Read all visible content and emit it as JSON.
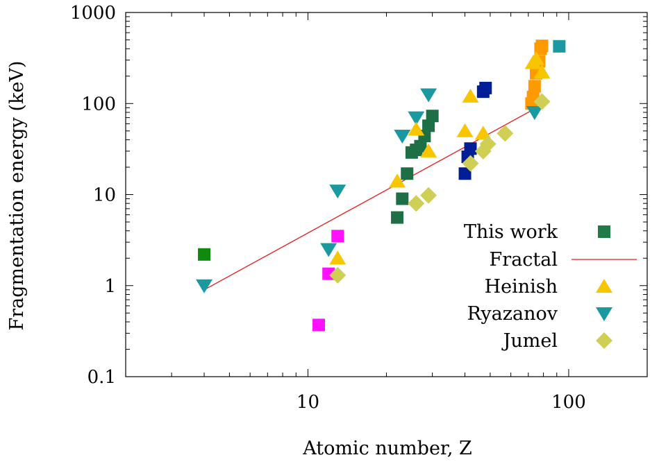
{
  "chart_data": {
    "type": "scatter",
    "xscale": "log",
    "yscale": "log",
    "xlim": [
      2,
      200
    ],
    "ylim": [
      0.1,
      1000
    ],
    "xlabel": "Atomic number, Z",
    "ylabel": "Fragmentation energy (keV)",
    "x_ticks": [
      10,
      100
    ],
    "x_tick_labels": [
      "10",
      "100"
    ],
    "y_ticks": [
      0.1,
      1,
      10,
      100,
      1000
    ],
    "y_tick_labels": [
      "0.1",
      "1",
      "10",
      "100",
      "1000"
    ],
    "legend_position": "right",
    "legend": [
      {
        "label": "This work",
        "marker": "square",
        "color": "#1f7a47"
      },
      {
        "label": "Fractal",
        "marker": "line",
        "color": "#e41a1c"
      },
      {
        "label": "Heinish",
        "marker": "triangle-up",
        "color": "#f7c600"
      },
      {
        "label": "Ryazanov",
        "marker": "triangle-down",
        "color": "#1a9aa0"
      },
      {
        "label": "Jumel",
        "marker": "diamond",
        "color": "#d0cf55"
      }
    ],
    "series": [
      {
        "name": "This work",
        "marker": "square",
        "groups": [
          {
            "color": "#0f8a0f",
            "points": [
              [
                4,
                2.2
              ]
            ]
          },
          {
            "color": "#ff10ff",
            "points": [
              [
                11,
                0.37
              ],
              [
                12,
                1.35
              ],
              [
                13,
                3.5
              ]
            ]
          },
          {
            "color": "#1e6f46",
            "points": [
              [
                22,
                5.6
              ],
              [
                23,
                9
              ],
              [
                24,
                17
              ],
              [
                25,
                29
              ],
              [
                26,
                31
              ],
              [
                27,
                34
              ],
              [
                28,
                44
              ],
              [
                29,
                57
              ],
              [
                30,
                73
              ]
            ]
          },
          {
            "color": "#001e96",
            "points": [
              [
                40,
                17
              ],
              [
                41,
                26
              ],
              [
                42,
                32
              ],
              [
                47,
                135
              ],
              [
                48,
                148
              ]
            ]
          },
          {
            "color": "#ff9900",
            "points": [
              [
                72,
                100
              ],
              [
                73,
                118
              ],
              [
                74,
                155
              ],
              [
                75,
                215
              ],
              [
                76,
                252
              ],
              [
                77,
                290
              ],
              [
                78,
                400
              ],
              [
                79,
                430
              ]
            ]
          },
          {
            "color": "#1a9aa0",
            "points": [
              [
                92,
                425
              ]
            ]
          }
        ]
      },
      {
        "name": "Fractal",
        "type": "line",
        "color": "#e41a1c",
        "points": [
          [
            4,
            0.9
          ],
          [
            78,
            95
          ]
        ]
      },
      {
        "name": "Heinish",
        "marker": "triangle-up",
        "color": "#f7c600",
        "points": [
          [
            13,
            2.0
          ],
          [
            22,
            14
          ],
          [
            26,
            52
          ],
          [
            29,
            30
          ],
          [
            40,
            50
          ],
          [
            42,
            120
          ],
          [
            47,
            47
          ],
          [
            73,
            280
          ],
          [
            75,
            310
          ],
          [
            79,
            220
          ]
        ]
      },
      {
        "name": "Ryazanov",
        "marker": "triangle-down",
        "color": "#1a9aa0",
        "points": [
          [
            4,
            1.0
          ],
          [
            12,
            2.5
          ],
          [
            13,
            11
          ],
          [
            23,
            44
          ],
          [
            26,
            70
          ],
          [
            29,
            125
          ],
          [
            74,
            80
          ]
        ]
      },
      {
        "name": "Jumel",
        "marker": "diamond",
        "color": "#d0cf55",
        "points": [
          [
            13,
            1.3
          ],
          [
            26,
            8
          ],
          [
            29,
            9.8
          ],
          [
            42,
            22
          ],
          [
            47,
            30
          ],
          [
            49,
            36
          ],
          [
            57,
            47
          ],
          [
            79,
            105
          ]
        ]
      }
    ]
  }
}
